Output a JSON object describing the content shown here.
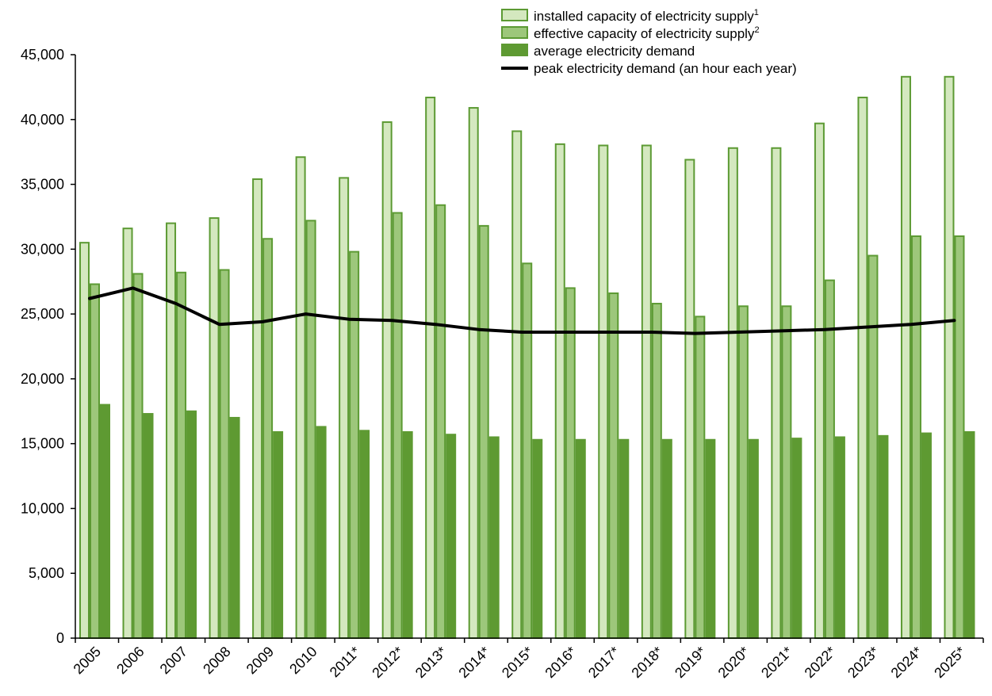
{
  "chart_data": {
    "type": "bar",
    "title": "",
    "xlabel": "",
    "ylabel": "",
    "ylim": [
      0,
      45000
    ],
    "yticks": [
      "0",
      "5,000",
      "10,000",
      "15,000",
      "20,000",
      "25,000",
      "30,000",
      "35,000",
      "40,000",
      "45,000"
    ],
    "grid": false,
    "legend_position": "top-right",
    "categories": [
      "2005",
      "2006",
      "2007",
      "2008",
      "2009",
      "2010",
      "2011*",
      "2012*",
      "2013*",
      "2014*",
      "2015*",
      "2016*",
      "2017*",
      "2018*",
      "2019*",
      "2020*",
      "2021*",
      "2022*",
      "2023*",
      "2024*",
      "2025*"
    ],
    "series": [
      {
        "name": "installed capacity of electricity supply",
        "superscript": "1",
        "kind": "bar",
        "fill": "#d4e8bf",
        "stroke": "#5c9a33",
        "values": [
          30500,
          31600,
          32000,
          32400,
          35400,
          37100,
          35500,
          39800,
          41700,
          40900,
          39100,
          38100,
          38000,
          38000,
          36900,
          37800,
          37800,
          39700,
          41700,
          43300,
          43300
        ]
      },
      {
        "name": "effective capacity of electricity supply",
        "superscript": "2",
        "kind": "bar",
        "fill": "#9dc77b",
        "stroke": "#5c9a33",
        "values": [
          27300,
          28100,
          28200,
          28400,
          30800,
          32200,
          29800,
          32800,
          33400,
          31800,
          28900,
          27000,
          26600,
          25800,
          24800,
          25600,
          25600,
          27600,
          29500,
          31000,
          31000
        ]
      },
      {
        "name": "average electricity demand",
        "superscript": "",
        "kind": "bar",
        "fill": "#5e9a32",
        "stroke": "#5e9a32",
        "values": [
          18000,
          17300,
          17500,
          17000,
          15900,
          16300,
          16000,
          15900,
          15700,
          15500,
          15300,
          15300,
          15300,
          15300,
          15300,
          15300,
          15400,
          15500,
          15600,
          15800,
          15900
        ]
      },
      {
        "name": "peak electricity demand (an hour each year)",
        "superscript": "",
        "kind": "line",
        "stroke": "#000000",
        "values": [
          26200,
          27000,
          25800,
          24200,
          24400,
          25000,
          24600,
          24500,
          24200,
          23800,
          23600,
          23600,
          23600,
          23600,
          23500,
          23600,
          23700,
          23800,
          24000,
          24200,
          24500
        ]
      }
    ]
  }
}
